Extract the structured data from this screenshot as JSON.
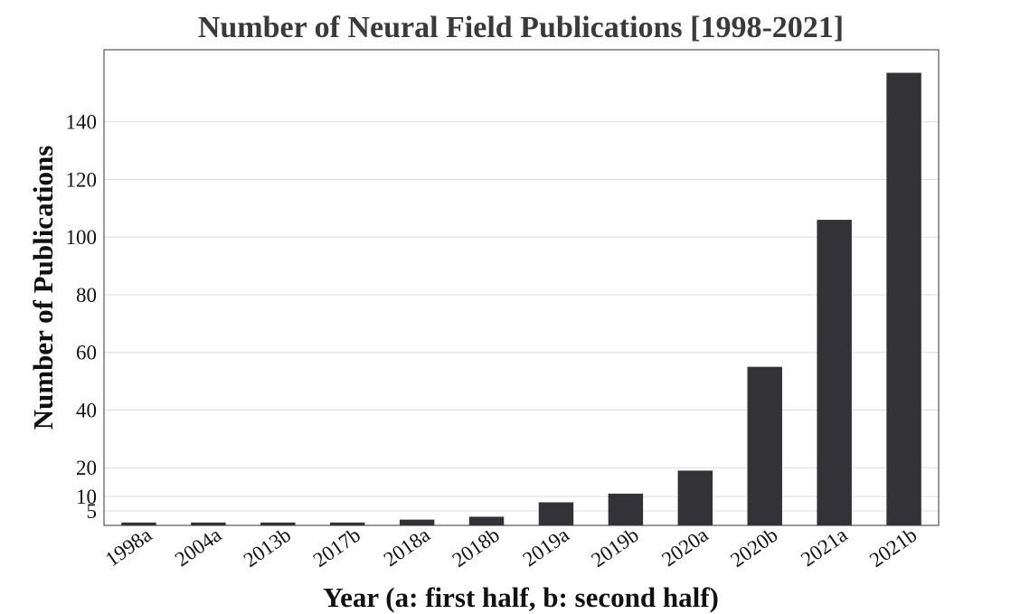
{
  "chart_data": {
    "type": "bar",
    "title": "Number of Neural Field Publications [1998-2021]",
    "xlabel": "Year (a: first half, b: second half)",
    "ylabel": "Number of Publications",
    "categories": [
      "1998a",
      "2004a",
      "2013b",
      "2017b",
      "2018a",
      "2018b",
      "2019a",
      "2019b",
      "2020a",
      "2020b",
      "2021a",
      "2021b"
    ],
    "values": [
      1,
      1,
      1,
      1,
      2,
      3,
      8,
      11,
      19,
      55,
      106,
      157
    ],
    "yticks": [
      5,
      10,
      20,
      40,
      60,
      80,
      100,
      120,
      140
    ],
    "ylim": [
      0,
      165
    ],
    "grid": "horizontal",
    "colors": {
      "bar": "#333236",
      "grid": "#dcdcdc",
      "frame": "#333333",
      "title": "#3a3a3a"
    }
  }
}
